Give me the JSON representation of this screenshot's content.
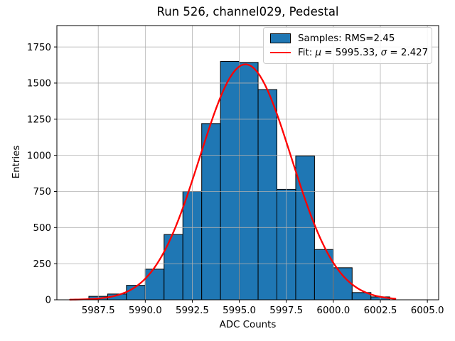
{
  "chart_data": {
    "type": "bar",
    "subtype": "histogram",
    "title": "Run 526, channel029, Pedestal",
    "xlabel": "ADC Counts",
    "ylabel": "Entries",
    "bin_edges": [
      5987,
      5988,
      5989,
      5990,
      5991,
      5992,
      5993,
      5994,
      5995,
      5996,
      5997,
      5998,
      5999,
      6000,
      6001,
      6002,
      6003
    ],
    "values": [
      24,
      40,
      100,
      212,
      452,
      750,
      1220,
      1650,
      1643,
      1455,
      765,
      995,
      348,
      222,
      50,
      20
    ],
    "xlim": [
      5985.3,
      6005.6
    ],
    "ylim": [
      0,
      1898
    ],
    "xticks": [
      5987.5,
      5990.0,
      5992.5,
      5995.0,
      5997.5,
      6000.0,
      6002.5,
      6005.0
    ],
    "xtick_labels": [
      "5987.5",
      "5990.0",
      "5992.5",
      "5995.0",
      "5997.5",
      "6000.0",
      "6002.5",
      "6005.0"
    ],
    "yticks": [
      0,
      250,
      500,
      750,
      1000,
      1250,
      1500,
      1750
    ],
    "ytick_labels": [
      "0",
      "250",
      "500",
      "750",
      "1000",
      "1250",
      "1500",
      "1750"
    ],
    "grid": true,
    "legend_position": "upper right",
    "fit_curve": {
      "type": "gaussian",
      "mu": 5995.33,
      "sigma": 2.427,
      "amplitude": 1630,
      "x_min": 5986.0,
      "x_max": 6003.3
    },
    "legend": {
      "entries": [
        {
          "label": "Samples: RMS=2.45",
          "swatch": "patch",
          "segments": [
            {
              "text": "Samples: RMS=2.45",
              "italic": false
            }
          ]
        },
        {
          "label": "Fit: μ = 5995.33, σ = 2.427",
          "swatch": "line",
          "segments": [
            {
              "text": "Fit: ",
              "italic": false
            },
            {
              "text": "μ",
              "italic": true
            },
            {
              "text": " = 5995.33, ",
              "italic": false
            },
            {
              "text": "σ",
              "italic": true
            },
            {
              "text": " = 2.427",
              "italic": false
            }
          ]
        }
      ]
    },
    "colors": {
      "bar_fill": "#1f77b4",
      "bar_edge": "#000000",
      "fit_line": "#ff0000",
      "grid": "#b0b0b0",
      "axes": "#000000",
      "text": "#000000",
      "legend_border": "#cccccc",
      "background": "#ffffff"
    }
  }
}
